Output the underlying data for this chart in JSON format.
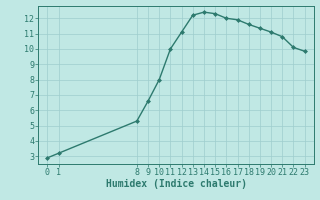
{
  "x": [
    0,
    1,
    8,
    9,
    10,
    11,
    12,
    13,
    14,
    15,
    16,
    17,
    18,
    19,
    20,
    21,
    22,
    23
  ],
  "y": [
    2.9,
    3.2,
    5.3,
    6.6,
    8.0,
    10.0,
    11.1,
    12.2,
    12.4,
    12.3,
    12.0,
    11.9,
    11.6,
    11.35,
    11.1,
    10.8,
    10.1,
    9.85
  ],
  "line_color": "#2d7a6e",
  "bg_color": "#c0e8e4",
  "grid_color": "#9ecece",
  "xlabel": "Humidex (Indice chaleur)",
  "ylim": [
    2.5,
    12.8
  ],
  "xlim": [
    -0.8,
    23.8
  ],
  "yticks": [
    3,
    4,
    5,
    6,
    7,
    8,
    9,
    10,
    11,
    12
  ],
  "xticks": [
    0,
    1,
    8,
    9,
    10,
    11,
    12,
    13,
    14,
    15,
    16,
    17,
    18,
    19,
    20,
    21,
    22,
    23
  ],
  "marker": "D",
  "marker_size": 2.0,
  "line_width": 1.0,
  "xlabel_fontsize": 7,
  "tick_fontsize": 6
}
